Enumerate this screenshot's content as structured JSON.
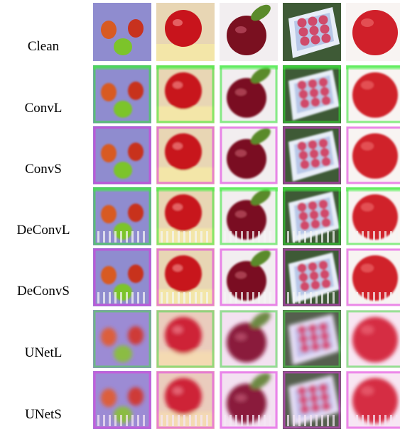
{
  "rows": [
    {
      "label": "Clean"
    },
    {
      "label": "ConvL"
    },
    {
      "label": "ConvS"
    },
    {
      "label": "DeConvL"
    },
    {
      "label": "DeConvS"
    },
    {
      "label": "UNetL"
    },
    {
      "label": "UNetS"
    }
  ],
  "thumbnails": [
    {
      "subject": "three-apples-on-lavender-cloth",
      "bg": "#8f8ccf",
      "fg": "#d04a2a"
    },
    {
      "subject": "red-apple-on-books",
      "bg": "#e8d6b4",
      "fg": "#c8141c"
    },
    {
      "subject": "dark-red-apple-with-leaf",
      "bg": "#f2eef0",
      "fg": "#7a1020"
    },
    {
      "subject": "box-of-apples-on-grass",
      "bg": "#3e5a36",
      "fg": "#c05070"
    },
    {
      "subject": "red-apple-on-white",
      "bg": "#f8f4f2",
      "fg": "#d0202a"
    }
  ],
  "colors": {
    "background": "#ffffff",
    "label_text": "#000000"
  }
}
